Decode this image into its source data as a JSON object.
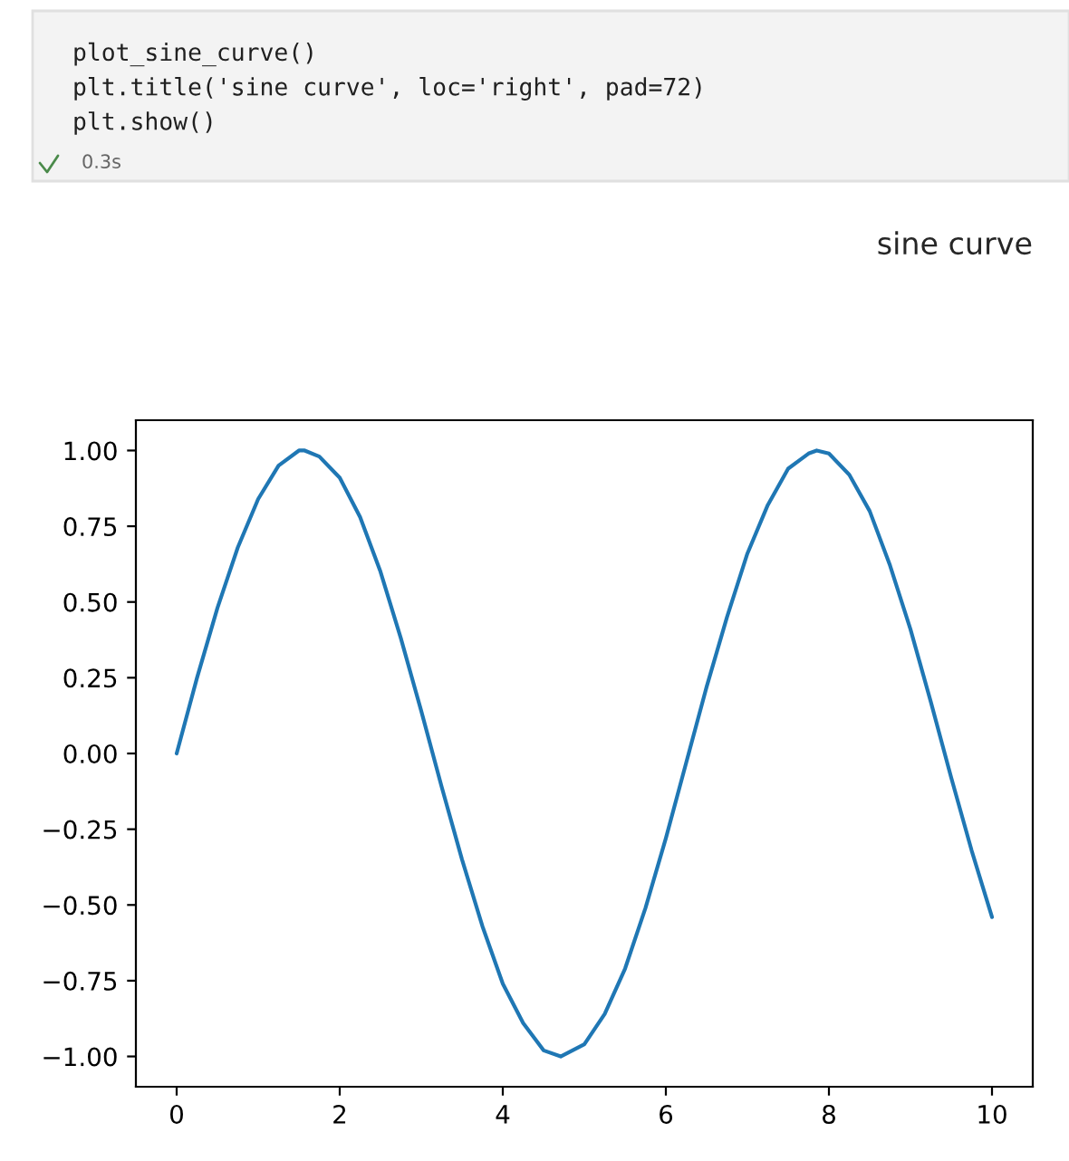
{
  "chart_data": {
    "type": "line",
    "title": "sine curve",
    "annotations": [
      "plot_sine_curve()",
      "plt.title('sine curve', loc='right', pad=72)",
      "plt.show()",
      "0.3s"
    ],
    "x": [
      0,
      0.25,
      0.5,
      0.75,
      1,
      1.25,
      1.5,
      1.57,
      1.75,
      2,
      2.25,
      2.5,
      2.75,
      3,
      3.25,
      3.5,
      3.75,
      4,
      4.25,
      4.5,
      4.71,
      5,
      5.25,
      5.5,
      5.75,
      6,
      6.25,
      6.5,
      6.75,
      7,
      7.25,
      7.5,
      7.75,
      7.85,
      8,
      8.25,
      8.5,
      8.75,
      9,
      9.25,
      9.5,
      9.75,
      10
    ],
    "series": [
      {
        "color": "#1f77b4",
        "values": [
          0,
          0.25,
          0.48,
          0.68,
          0.84,
          0.95,
          1.0,
          1.0,
          0.98,
          0.91,
          0.78,
          0.6,
          0.38,
          0.14,
          -0.11,
          -0.35,
          -0.57,
          -0.76,
          -0.89,
          -0.98,
          -1.0,
          -0.96,
          -0.86,
          -0.71,
          -0.51,
          -0.28,
          -0.03,
          0.22,
          0.45,
          0.66,
          0.82,
          0.94,
          0.99,
          1.0,
          0.99,
          0.92,
          0.8,
          0.62,
          0.41,
          0.17,
          -0.08,
          -0.32,
          -0.54
        ]
      }
    ],
    "xlim": [
      -0.5,
      10.5
    ],
    "ylim": [
      -1.1,
      1.1
    ],
    "xticks": [
      0,
      2,
      4,
      6,
      8,
      10
    ],
    "yticks": [
      {
        "value": -1,
        "label": "−1.00"
      },
      {
        "value": -0.75,
        "label": "−0.75"
      },
      {
        "value": -0.5,
        "label": "−0.50"
      },
      {
        "value": -0.25,
        "label": "−0.25"
      },
      {
        "value": 0,
        "label": "0.00"
      },
      {
        "value": 0.25,
        "label": "0.25"
      },
      {
        "value": 0.5,
        "label": "0.50"
      },
      {
        "value": 0.75,
        "label": "0.75"
      },
      {
        "value": 1,
        "label": "1.00"
      }
    ],
    "grid": false,
    "legend": false,
    "line_style": "solid",
    "marker": "none"
  }
}
